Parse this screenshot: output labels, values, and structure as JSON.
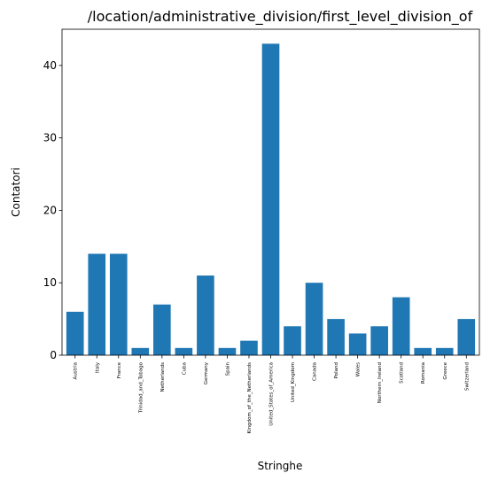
{
  "chart_data": {
    "type": "bar",
    "title": "/location/administrative_division/first_level_division_of",
    "xlabel": "Stringhe",
    "ylabel": "Contatori",
    "ylim": [
      0,
      45
    ],
    "yticks": [
      0,
      10,
      20,
      30,
      40
    ],
    "grid": false,
    "bar_color": "#1f77b4",
    "categories": [
      "Austria",
      "Italy",
      "France",
      "Trinidad_and_Tobago",
      "Netherlands",
      "Cuba",
      "Germany",
      "Spain",
      "Kingdom_of_the_Netherlands",
      "United_States_of_America",
      "United_Kingdom",
      "Canada",
      "Poland",
      "Wales",
      "Northern_Ireland",
      "Scotland",
      "Romania",
      "Greece",
      "Switzerland"
    ],
    "values": [
      6,
      14,
      14,
      1,
      7,
      1,
      11,
      1,
      2,
      43,
      4,
      10,
      5,
      3,
      4,
      8,
      1,
      1,
      5
    ]
  }
}
